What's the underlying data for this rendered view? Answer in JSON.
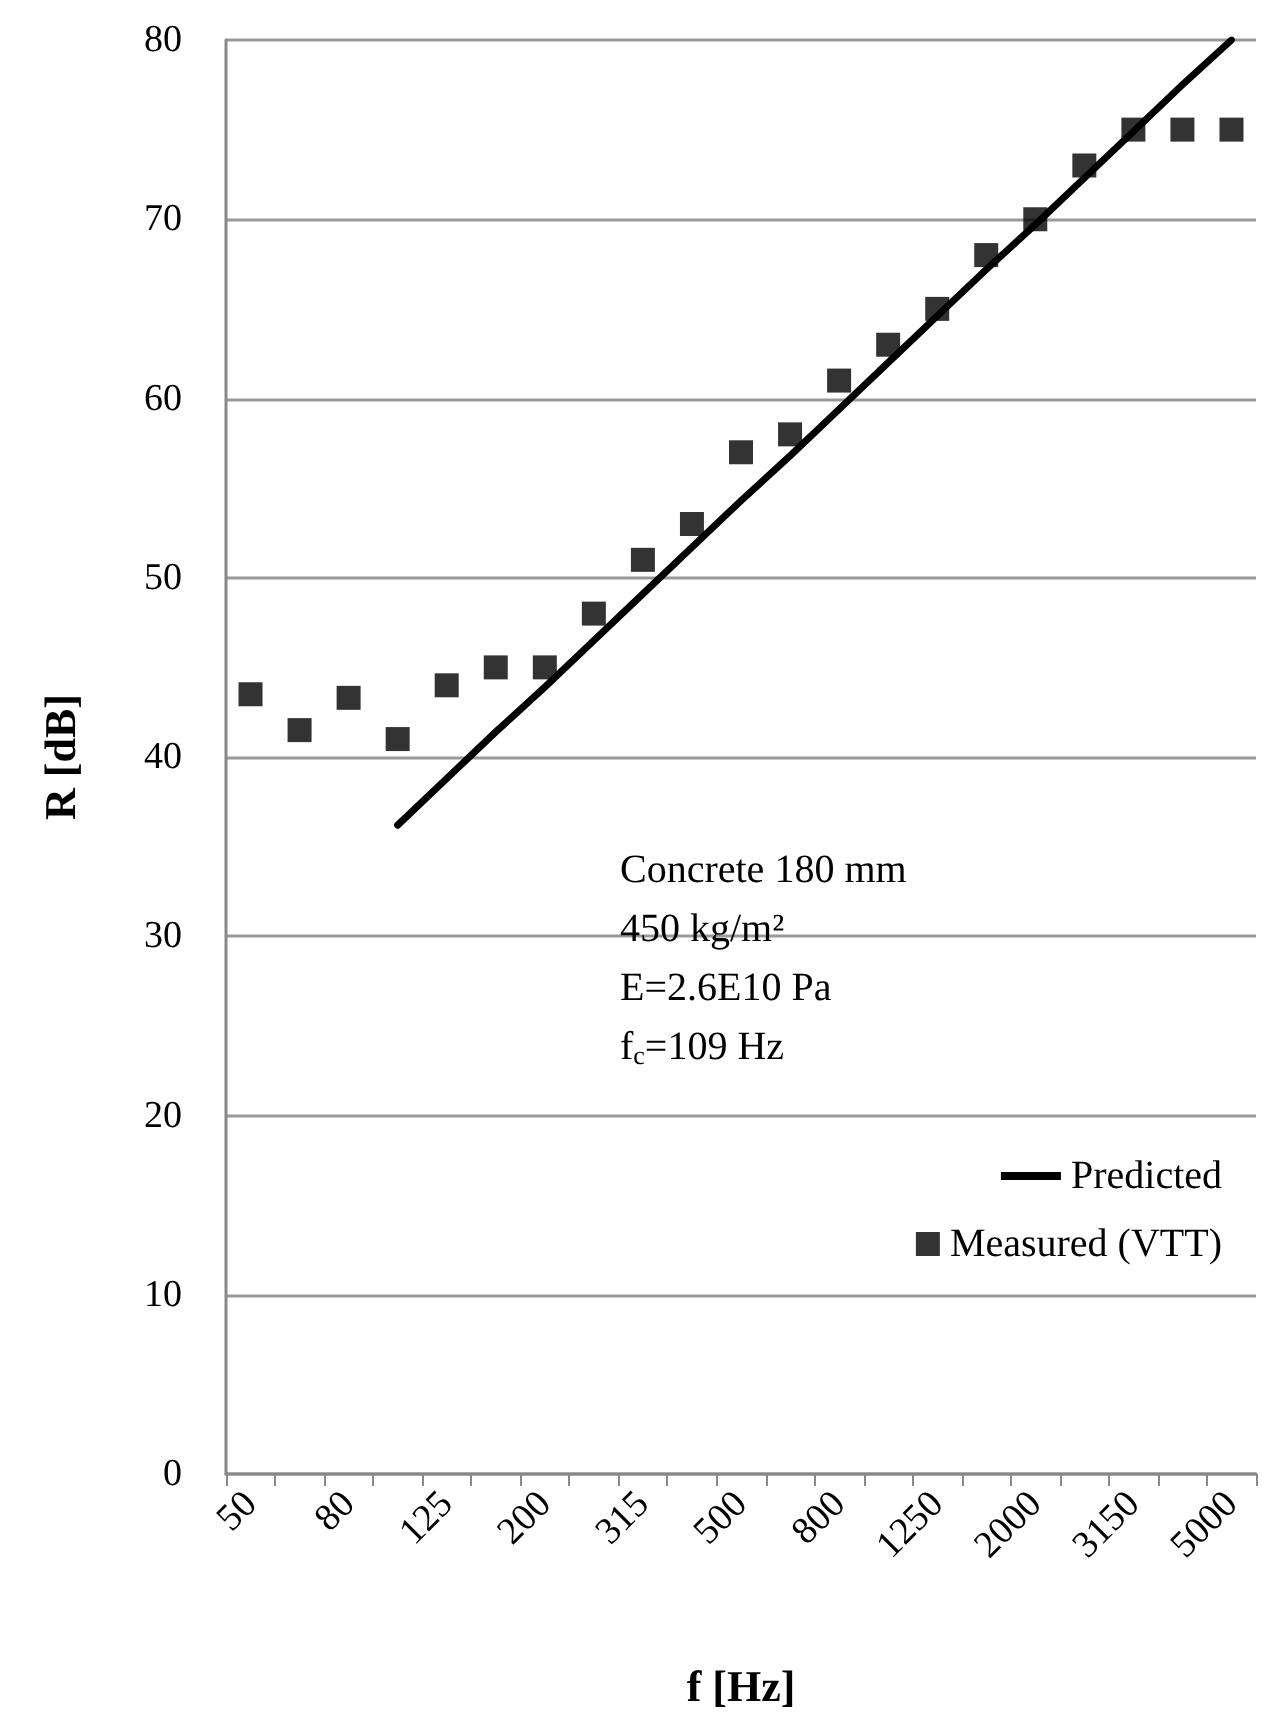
{
  "chart_data": {
    "type": "scatter",
    "xlabel": "f [Hz]",
    "ylabel": "R [dB]",
    "categories": [
      "50",
      null,
      "80",
      null,
      "125",
      null,
      "200",
      null,
      "315",
      null,
      "500",
      null,
      "800",
      null,
      "1250",
      null,
      "2000",
      null,
      "3150",
      null,
      "5000"
    ],
    "series": [
      {
        "name": "Predicted",
        "type": "line",
        "color": "#000000",
        "marker": "none",
        "values": [
          null,
          null,
          null,
          36.2,
          38.8,
          41.4,
          43.9,
          46.5,
          49.1,
          51.7,
          54.3,
          56.8,
          59.4,
          62.0,
          64.6,
          67.2,
          69.7,
          72.3,
          74.9,
          77.5,
          80.0
        ]
      },
      {
        "name": "Measured (VTT)",
        "color": "#000000",
        "marker": "square",
        "values": [
          43.5,
          41.5,
          43.3,
          41,
          44,
          45,
          45,
          48,
          51,
          53,
          57,
          58,
          61,
          63,
          65,
          68,
          70,
          73,
          75,
          75,
          75
        ]
      }
    ],
    "ylim": [
      0,
      80
    ],
    "yticks": [
      0,
      10,
      20,
      30,
      40,
      50,
      60,
      70,
      80
    ],
    "grid": "y",
    "legend": "bottom right",
    "annotations": [
      "Concrete 180 mm",
      "450 kg/m²",
      "E=2.6E10 Pa",
      "f$_{c}$=109 Hz"
    ]
  }
}
